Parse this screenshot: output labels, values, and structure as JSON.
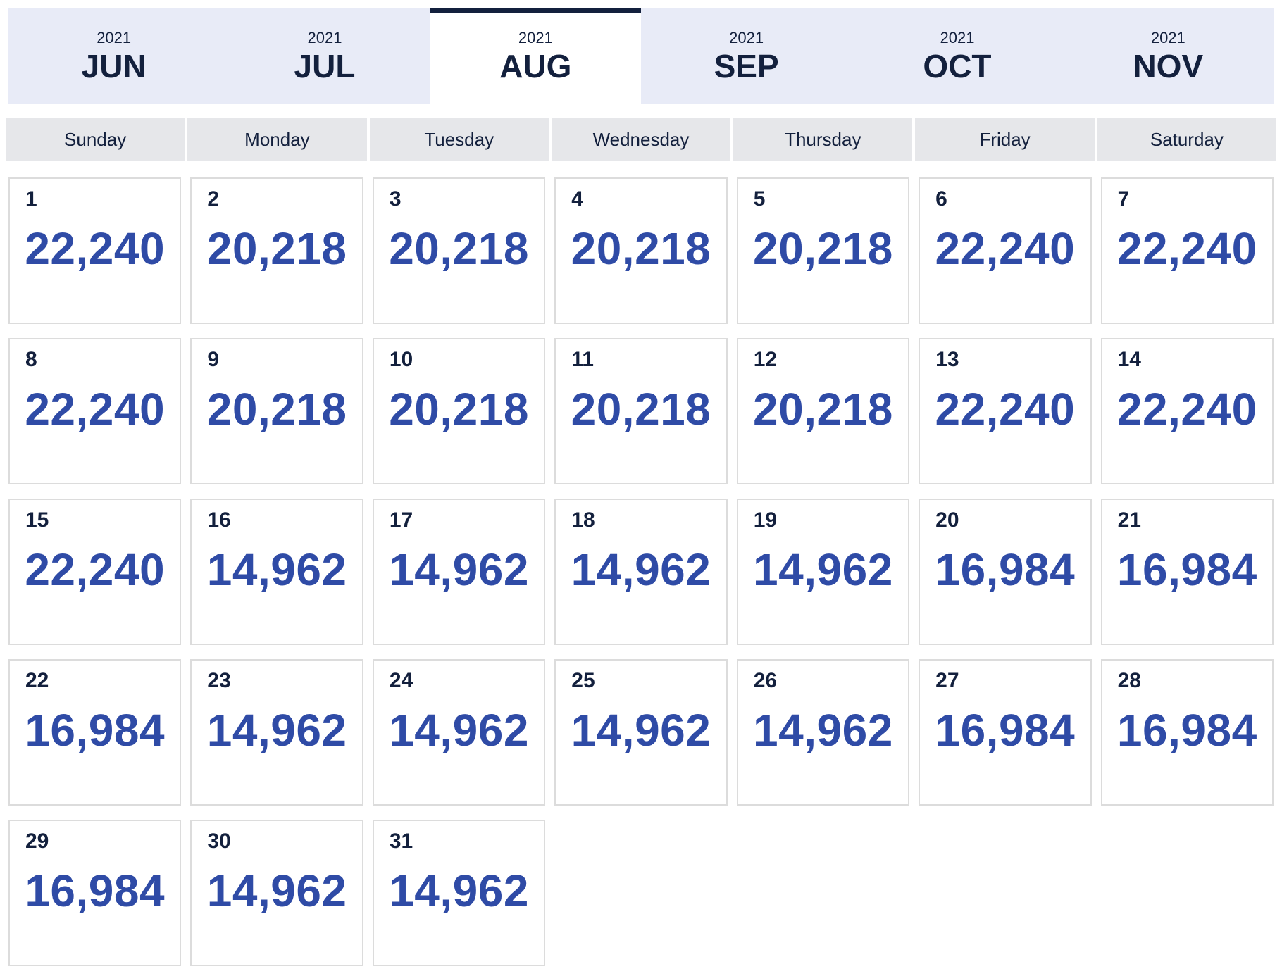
{
  "months": [
    {
      "year": "2021",
      "label": "JUN",
      "active": false
    },
    {
      "year": "2021",
      "label": "JUL",
      "active": false
    },
    {
      "year": "2021",
      "label": "AUG",
      "active": true
    },
    {
      "year": "2021",
      "label": "SEP",
      "active": false
    },
    {
      "year": "2021",
      "label": "OCT",
      "active": false
    },
    {
      "year": "2021",
      "label": "NOV",
      "active": false
    }
  ],
  "weekdays": [
    "Sunday",
    "Monday",
    "Tuesday",
    "Wednesday",
    "Thursday",
    "Friday",
    "Saturday"
  ],
  "days": [
    {
      "day": "1",
      "price": "22,240"
    },
    {
      "day": "2",
      "price": "20,218"
    },
    {
      "day": "3",
      "price": "20,218"
    },
    {
      "day": "4",
      "price": "20,218"
    },
    {
      "day": "5",
      "price": "20,218"
    },
    {
      "day": "6",
      "price": "22,240"
    },
    {
      "day": "7",
      "price": "22,240"
    },
    {
      "day": "8",
      "price": "22,240"
    },
    {
      "day": "9",
      "price": "20,218"
    },
    {
      "day": "10",
      "price": "20,218"
    },
    {
      "day": "11",
      "price": "20,218"
    },
    {
      "day": "12",
      "price": "20,218"
    },
    {
      "day": "13",
      "price": "22,240"
    },
    {
      "day": "14",
      "price": "22,240"
    },
    {
      "day": "15",
      "price": "22,240"
    },
    {
      "day": "16",
      "price": "14,962"
    },
    {
      "day": "17",
      "price": "14,962"
    },
    {
      "day": "18",
      "price": "14,962"
    },
    {
      "day": "19",
      "price": "14,962"
    },
    {
      "day": "20",
      "price": "16,984"
    },
    {
      "day": "21",
      "price": "16,984"
    },
    {
      "day": "22",
      "price": "16,984"
    },
    {
      "day": "23",
      "price": "14,962"
    },
    {
      "day": "24",
      "price": "14,962"
    },
    {
      "day": "25",
      "price": "14,962"
    },
    {
      "day": "26",
      "price": "14,962"
    },
    {
      "day": "27",
      "price": "16,984"
    },
    {
      "day": "28",
      "price": "16,984"
    },
    {
      "day": "29",
      "price": "16,984"
    },
    {
      "day": "30",
      "price": "14,962"
    },
    {
      "day": "31",
      "price": "14,962"
    }
  ],
  "colors": {
    "accent": "#13203d",
    "price": "#2f4ba6",
    "tab_bg": "#e8ebf7",
    "weekday_bg": "#e6e7ea"
  }
}
